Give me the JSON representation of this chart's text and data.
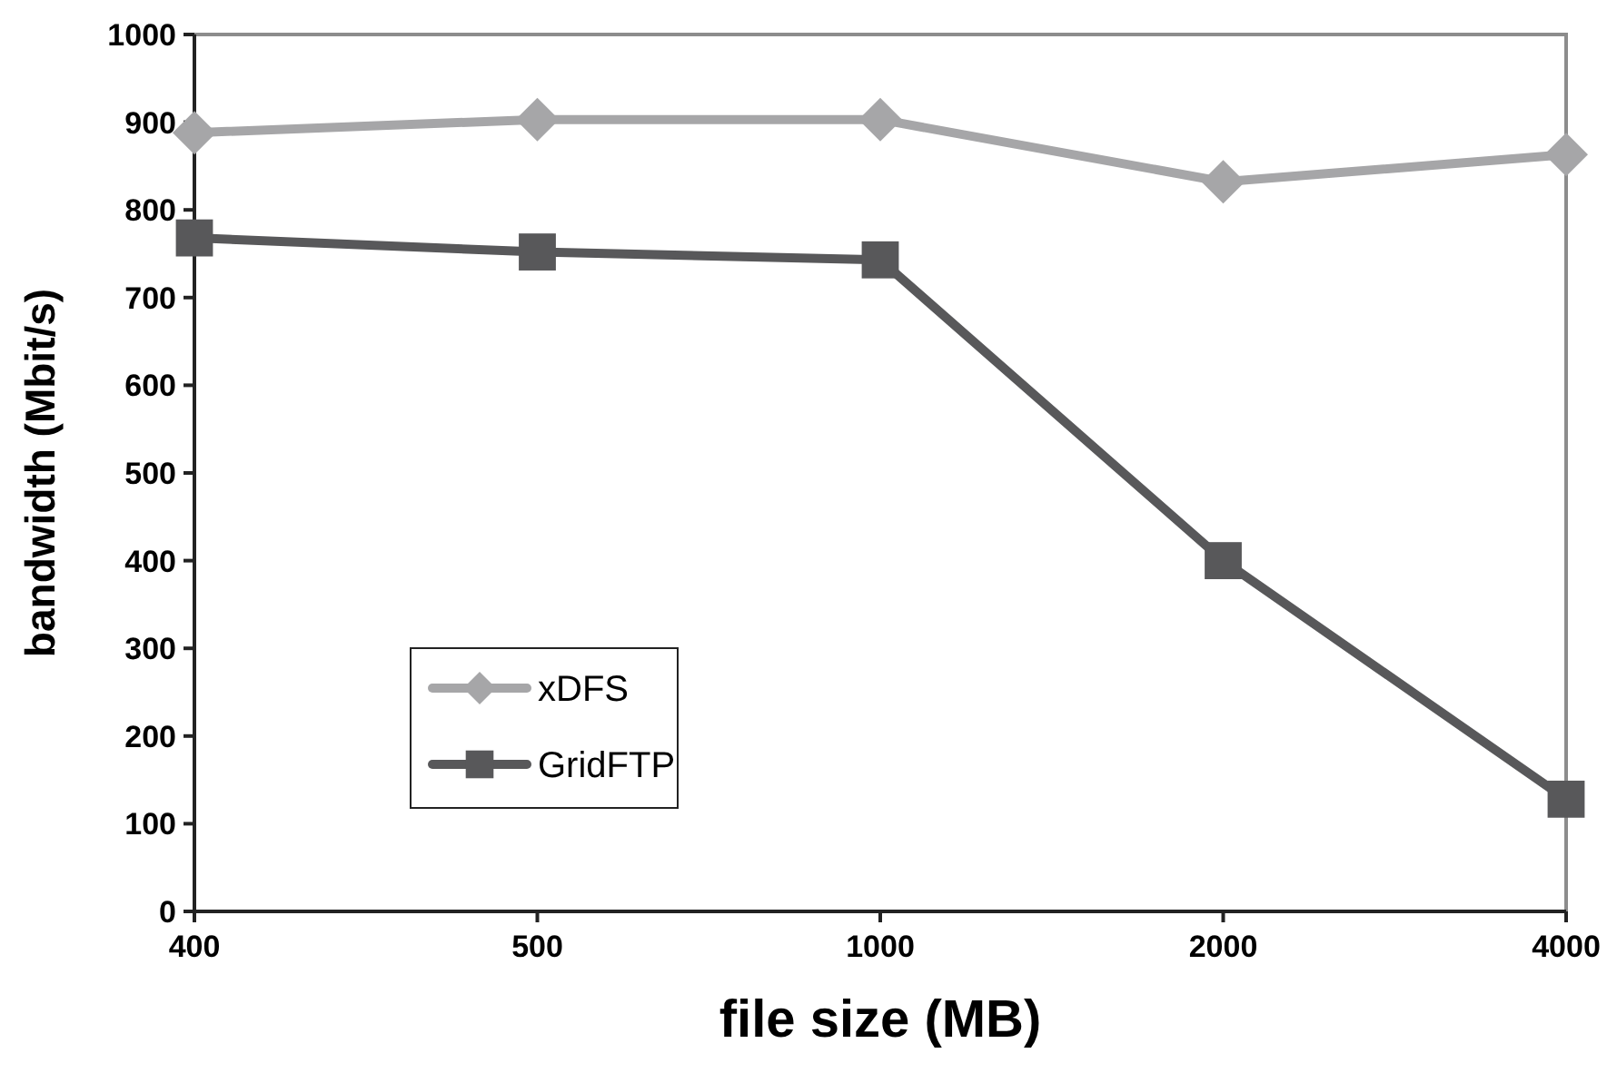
{
  "chart_data": {
    "type": "line",
    "xlabel": "file size (MB)",
    "ylabel": "bandwidth (Mbit/s)",
    "categories": [
      "400",
      "500",
      "1000",
      "2000",
      "4000"
    ],
    "series": [
      {
        "name": "xDFS",
        "color": "#a6a6a8",
        "marker": "diamond",
        "values": [
          888,
          903,
          903,
          832,
          863
        ]
      },
      {
        "name": "GridFTP",
        "color": "#58585a",
        "marker": "square",
        "values": [
          768,
          752,
          743,
          400,
          128
        ]
      }
    ],
    "ylim": [
      0,
      1000
    ],
    "yticks": [
      0,
      100,
      200,
      300,
      400,
      500,
      600,
      700,
      800,
      900,
      1000
    ],
    "grid": false,
    "legend": "bottom left"
  }
}
